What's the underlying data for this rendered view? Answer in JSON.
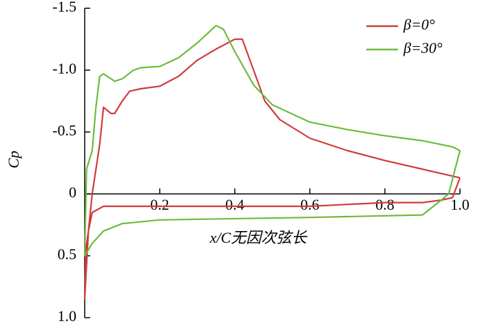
{
  "chart_data": {
    "type": "line",
    "xlabel": "x/C无因次弦长",
    "ylabel": "Cp",
    "xlim": [
      0,
      1
    ],
    "xticks": [
      0.2,
      0.4,
      0.6,
      0.8,
      {
        "value": 1.0,
        "label": "1.0"
      }
    ],
    "ylim": [
      -1.5,
      1.0
    ],
    "yticks": [
      -1.5,
      {
        "value": -1.0,
        "label": "-1.0"
      },
      -0.5,
      0,
      0.5,
      {
        "value": 1.0,
        "label": "1.0"
      }
    ],
    "inverted_y": true,
    "legend": "upper right",
    "series": [
      {
        "name": "β=0°",
        "color": "#d03a3a",
        "x": [
          1.0,
          0.9,
          0.8,
          0.7,
          0.6,
          0.52,
          0.48,
          0.45,
          0.42,
          0.4,
          0.35,
          0.3,
          0.25,
          0.2,
          0.15,
          0.12,
          0.1,
          0.08,
          0.07,
          0.05,
          0.04,
          0.02,
          0.01,
          0.0,
          0.003,
          0.01,
          0.02,
          0.05,
          0.2,
          0.4,
          0.6,
          0.8,
          0.9,
          0.95,
          0.98,
          1.0
        ],
        "values": [
          -0.13,
          -0.2,
          -0.27,
          -0.35,
          -0.45,
          -0.6,
          -0.75,
          -1.0,
          -1.25,
          -1.25,
          -1.17,
          -1.08,
          -0.95,
          -0.87,
          -0.85,
          -0.83,
          -0.75,
          -0.65,
          -0.65,
          -0.7,
          -0.4,
          0.0,
          0.3,
          0.85,
          0.45,
          0.3,
          0.15,
          0.1,
          0.1,
          0.1,
          0.1,
          0.07,
          0.07,
          0.05,
          0.03,
          -0.13
        ]
      },
      {
        "name": "β=30°",
        "color": "#6cbb3c",
        "x": [
          1.0,
          0.98,
          0.9,
          0.8,
          0.7,
          0.6,
          0.5,
          0.45,
          0.4,
          0.37,
          0.35,
          0.3,
          0.25,
          0.2,
          0.15,
          0.13,
          0.1,
          0.08,
          0.07,
          0.05,
          0.04,
          0.03,
          0.02,
          0.01,
          0.005,
          0.0,
          0.02,
          0.05,
          0.1,
          0.2,
          0.6,
          0.9,
          0.95,
          0.97,
          1.0
        ],
        "values": [
          -0.35,
          -0.38,
          -0.43,
          -0.47,
          -0.52,
          -0.58,
          -0.72,
          -0.88,
          -1.15,
          -1.33,
          -1.36,
          -1.22,
          -1.1,
          -1.03,
          -1.02,
          -1.0,
          -0.93,
          -0.91,
          -0.93,
          -0.97,
          -0.95,
          -0.7,
          -0.35,
          -0.25,
          -0.2,
          0.5,
          0.4,
          0.3,
          0.24,
          0.21,
          0.19,
          0.17,
          0.05,
          0.0,
          -0.35
        ]
      }
    ]
  }
}
